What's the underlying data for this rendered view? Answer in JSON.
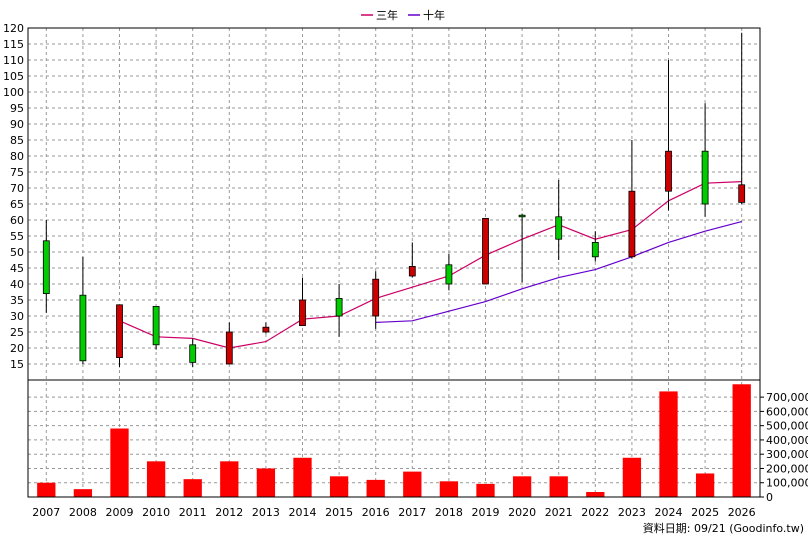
{
  "legend": [
    {
      "label": "三年",
      "color": "#cc0066"
    },
    {
      "label": "十年",
      "color": "#6600cc"
    }
  ],
  "footer": "資料日期: 09/21  (Goodinfo.tw)",
  "chart_data": [
    {
      "type": "candlestick",
      "x": [
        "2007",
        "2008",
        "2009",
        "2010",
        "2011",
        "2012",
        "2013",
        "2014",
        "2015",
        "2016",
        "2017",
        "2018",
        "2019",
        "2020",
        "2021",
        "2022",
        "2023",
        "2024",
        "2025",
        "2026"
      ],
      "ylim": [
        10,
        120
      ],
      "yticks": [
        15,
        20,
        25,
        30,
        35,
        40,
        45,
        50,
        55,
        60,
        65,
        70,
        75,
        80,
        85,
        90,
        95,
        100,
        105,
        110,
        115,
        120
      ],
      "grid": true,
      "up_color": "#00cc00",
      "down_color": "#cc0000",
      "ohlc": [
        {
          "open": 37,
          "high": 60,
          "low": 31,
          "close": 53.5
        },
        {
          "open": 16,
          "high": 48.5,
          "low": 15,
          "close": 36.5
        },
        {
          "open": 33.5,
          "high": 33.5,
          "low": 14,
          "close": 17
        },
        {
          "open": 21,
          "high": 33,
          "low": 19.5,
          "close": 33
        },
        {
          "open": 15.5,
          "high": 23,
          "low": 14,
          "close": 21
        },
        {
          "open": 25,
          "high": 28,
          "low": 15,
          "close": 15
        },
        {
          "open": 26.5,
          "high": 28,
          "low": 24.5,
          "close": 25
        },
        {
          "open": 35,
          "high": 42,
          "low": 27,
          "close": 27
        },
        {
          "open": 30,
          "high": 40,
          "low": 23.5,
          "close": 35.5
        },
        {
          "open": 41.5,
          "high": 44,
          "low": 26,
          "close": 30
        },
        {
          "open": 45.5,
          "high": 53,
          "low": 42,
          "close": 42.5
        },
        {
          "open": 40,
          "high": 49.5,
          "low": 38,
          "close": 46
        },
        {
          "open": 60.5,
          "high": 60.5,
          "low": 40,
          "close": 40
        },
        {
          "open": 61,
          "high": 62,
          "low": 40.5,
          "close": 61.5
        },
        {
          "open": 54,
          "high": 72.5,
          "low": 47.5,
          "close": 61
        },
        {
          "open": 48.5,
          "high": 56.5,
          "low": 47,
          "close": 53
        },
        {
          "open": 69,
          "high": 85,
          "low": 48,
          "close": 48.5
        },
        {
          "open": 81.5,
          "high": 110,
          "low": 63,
          "close": 69
        },
        {
          "open": 65,
          "high": 96.5,
          "low": 61,
          "close": 81.5
        },
        {
          "open": 71,
          "high": 118.5,
          "low": 65,
          "close": 65.5
        }
      ],
      "series": [
        {
          "name": "三年",
          "color": "#cc0066",
          "values": [
            null,
            null,
            28.5,
            23.5,
            23,
            20,
            22,
            29,
            30,
            35.5,
            39,
            42.5,
            49,
            54,
            58.5,
            54,
            57,
            66,
            71.5,
            72
          ]
        },
        {
          "name": "十年",
          "color": "#6600cc",
          "values": [
            null,
            null,
            null,
            null,
            null,
            null,
            null,
            null,
            null,
            28,
            28.5,
            31.5,
            34.5,
            38.5,
            42,
            44.5,
            48.5,
            53,
            56.5,
            59.5
          ]
        }
      ]
    },
    {
      "type": "bar",
      "x": [
        "2007",
        "2008",
        "2009",
        "2010",
        "2011",
        "2012",
        "2013",
        "2014",
        "2015",
        "2016",
        "2017",
        "2018",
        "2019",
        "2020",
        "2021",
        "2022",
        "2023",
        "2024",
        "2025",
        "2026"
      ],
      "values": [
        100000,
        55000,
        480000,
        250000,
        125000,
        250000,
        200000,
        275000,
        145000,
        120000,
        178000,
        110000,
        92000,
        145000,
        145000,
        35000,
        275000,
        740000,
        165000,
        790000
      ],
      "ylim": [
        0,
        820000
      ],
      "yticks": [
        "0",
        "100,000",
        "200,000",
        "300,000",
        "400,000",
        "500,000",
        "600,000",
        "700,000"
      ],
      "ytick_values": [
        0,
        100000,
        200000,
        300000,
        400000,
        500000,
        600000,
        700000
      ],
      "bar_color": "#ff0000",
      "grid": true
    }
  ]
}
